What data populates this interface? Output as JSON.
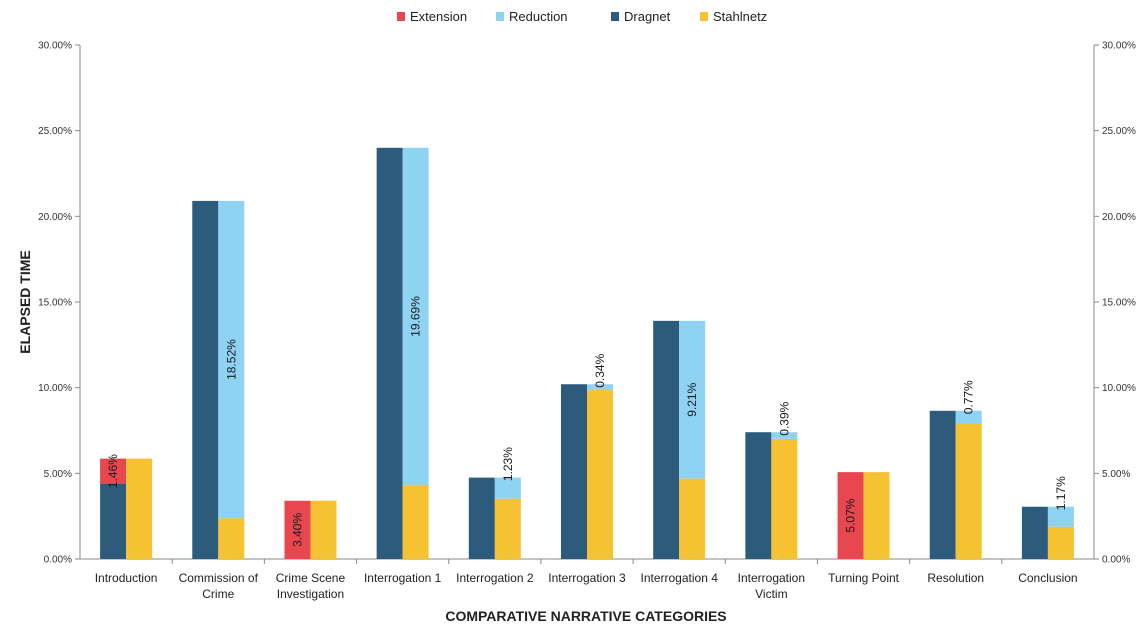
{
  "chart_data": {
    "type": "bar",
    "title": "",
    "xlabel": "COMPARATIVE NARRATIVE CATEGORIES",
    "ylabel": "ELAPSED TIME",
    "ylim": [
      0,
      30
    ],
    "yticks": [
      "0.00%",
      "5.00%",
      "10.00%",
      "15.00%",
      "20.00%",
      "25.00%",
      "30.00%"
    ],
    "legend_position": "top",
    "grid": false,
    "categories": [
      [
        "Introduction"
      ],
      [
        "Commission of",
        "Crime"
      ],
      [
        "Crime Scene",
        "Investigation"
      ],
      [
        "Interrogation 1"
      ],
      [
        "Interrogation 2"
      ],
      [
        "Interrogation 3"
      ],
      [
        "Interrogation 4"
      ],
      [
        "Interrogation",
        "Victim"
      ],
      [
        "Turning Point"
      ],
      [
        "Resolution"
      ],
      [
        "Conclusion"
      ]
    ],
    "series": [
      {
        "name": "Extension",
        "color": "#e8474f"
      },
      {
        "name": "Reduction",
        "color": "#8fd3f2"
      },
      {
        "name": "Dragnet",
        "color": "#2c5b7c"
      },
      {
        "name": "Stahlnetz",
        "color": "#f7c232"
      }
    ],
    "dragnet": [
      4.4,
      20.9,
      0,
      24.0,
      4.75,
      10.2,
      13.9,
      7.4,
      0,
      8.65,
      3.05
    ],
    "stahlnetz": [
      5.86,
      2.38,
      3.4,
      4.31,
      3.52,
      9.86,
      4.69,
      7.01,
      5.07,
      7.88,
      1.88
    ],
    "difference": [
      {
        "type": "Extension",
        "value": 1.46,
        "label": "1.46%"
      },
      {
        "type": "Reduction",
        "value": 18.52,
        "label": "18.52%"
      },
      {
        "type": "Extension",
        "value": 3.4,
        "label": "3.40%"
      },
      {
        "type": "Reduction",
        "value": 19.69,
        "label": "19.69%"
      },
      {
        "type": "Reduction",
        "value": 1.23,
        "label": "1.23%"
      },
      {
        "type": "Reduction",
        "value": 0.34,
        "label": "0.34%"
      },
      {
        "type": "Reduction",
        "value": 9.21,
        "label": "9.21%"
      },
      {
        "type": "Reduction",
        "value": 0.39,
        "label": "0.39%"
      },
      {
        "type": "Extension",
        "value": 5.07,
        "label": "5.07%"
      },
      {
        "type": "Reduction",
        "value": 0.77,
        "label": "0.77%"
      },
      {
        "type": "Reduction",
        "value": 1.17,
        "label": "1.17%"
      }
    ]
  }
}
